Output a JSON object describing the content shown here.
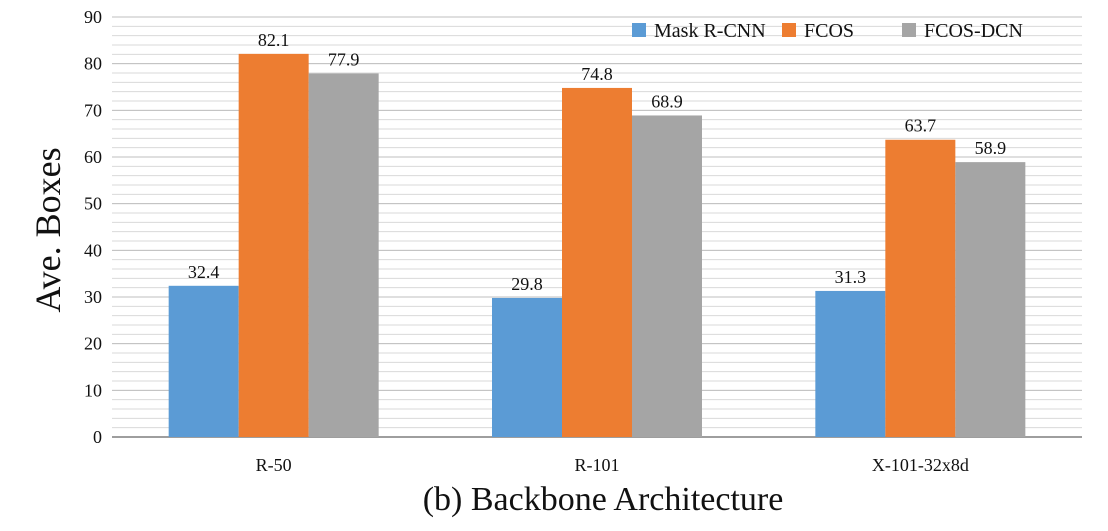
{
  "chart_data": {
    "type": "bar",
    "title": "",
    "xlabel": "(b) Backbone Architecture",
    "ylabel": "Ave. Boxes",
    "categories": [
      "R-50",
      "R-101",
      "X-101-32x8d"
    ],
    "series": [
      {
        "name": "Mask R-CNN",
        "color": "#5B9BD5",
        "values": [
          32.4,
          29.8,
          31.3
        ]
      },
      {
        "name": "FCOS",
        "color": "#ED7D31",
        "values": [
          82.1,
          74.8,
          63.7
        ]
      },
      {
        "name": "FCOS-DCN",
        "color": "#A5A5A5",
        "values": [
          77.9,
          68.9,
          58.9
        ]
      }
    ],
    "ylim": [
      0,
      90
    ],
    "yticks": [
      0,
      10,
      20,
      30,
      40,
      50,
      60,
      70,
      80,
      90
    ],
    "minor_grid_step": 2,
    "grid": true,
    "legend_position": "top-right",
    "data_labels": true
  }
}
